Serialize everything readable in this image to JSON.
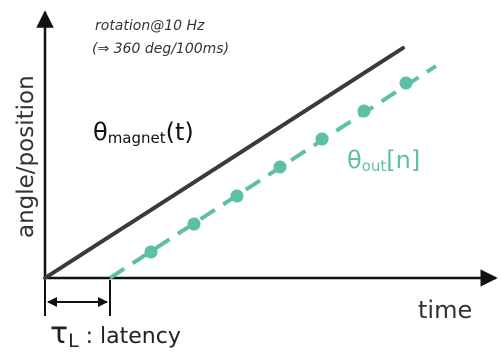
{
  "annotation": {
    "line1": "rotation@10 Hz",
    "line2": "(⇒ 360 deg/100ms)"
  },
  "axes": {
    "ylabel": "angle/position",
    "xlabel": "time"
  },
  "labels": {
    "magnet_symbol": "θ",
    "magnet_sub": "magnet",
    "magnet_arg": "(t)",
    "out_symbol": "θ",
    "out_sub": "out",
    "out_arg": "[n]",
    "latency_symbol": "τ",
    "latency_sub": "L",
    "latency_text": " : latency"
  },
  "colors": {
    "magnet": "#3a3a3a",
    "output": "#5dbfa5",
    "axis": "#111111",
    "text": "#222222"
  }
}
